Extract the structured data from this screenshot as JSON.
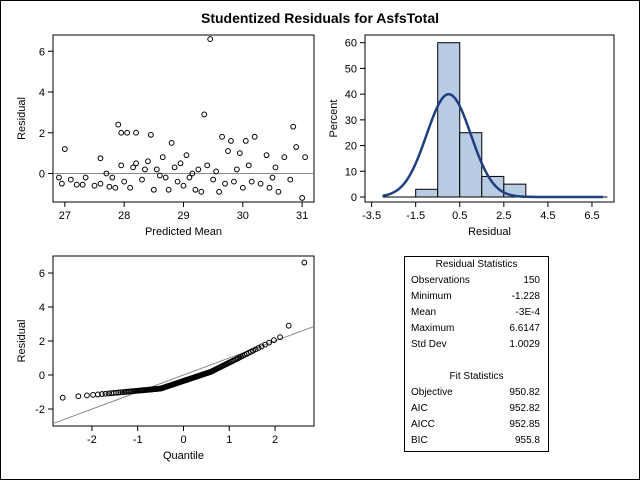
{
  "title": "Studentized Residuals for AsfsTotal",
  "chart_data": [
    {
      "type": "scatter",
      "name": "residual-vs-predicted",
      "xlabel": "Predicted Mean",
      "ylabel": "Residual",
      "xlim": [
        26.8,
        31.2
      ],
      "ylim": [
        -1.4,
        6.8
      ],
      "xticks": [
        27,
        28,
        29,
        30,
        31
      ],
      "yticks": [
        0,
        2,
        4,
        6
      ],
      "reference_line_y": 0,
      "points": [
        [
          26.9,
          -0.2
        ],
        [
          26.95,
          -0.5
        ],
        [
          27.0,
          1.2
        ],
        [
          27.1,
          -0.3
        ],
        [
          27.2,
          -0.55
        ],
        [
          27.3,
          -0.55
        ],
        [
          27.35,
          -0.2
        ],
        [
          27.5,
          -0.6
        ],
        [
          27.6,
          0.75
        ],
        [
          27.6,
          -0.5
        ],
        [
          27.7,
          0.0
        ],
        [
          27.75,
          -0.65
        ],
        [
          27.8,
          -0.2
        ],
        [
          27.85,
          -0.7
        ],
        [
          27.9,
          2.4
        ],
        [
          27.95,
          2.0
        ],
        [
          27.95,
          0.4
        ],
        [
          28.0,
          -0.4
        ],
        [
          28.05,
          2.0
        ],
        [
          28.1,
          -0.7
        ],
        [
          28.15,
          0.3
        ],
        [
          28.2,
          2.0
        ],
        [
          28.2,
          0.5
        ],
        [
          28.3,
          -0.3
        ],
        [
          28.35,
          0.2
        ],
        [
          28.4,
          0.6
        ],
        [
          28.45,
          1.9
        ],
        [
          28.5,
          -0.8
        ],
        [
          28.55,
          0.2
        ],
        [
          28.6,
          -0.1
        ],
        [
          28.65,
          0.8
        ],
        [
          28.7,
          -0.2
        ],
        [
          28.75,
          -0.8
        ],
        [
          28.8,
          1.5
        ],
        [
          28.85,
          0.3
        ],
        [
          28.9,
          -0.4
        ],
        [
          28.95,
          0.5
        ],
        [
          29.0,
          -0.6
        ],
        [
          29.05,
          0.9
        ],
        [
          29.1,
          -0.2
        ],
        [
          29.15,
          0.0
        ],
        [
          29.2,
          -0.8
        ],
        [
          29.25,
          0.2
        ],
        [
          29.3,
          -0.9
        ],
        [
          29.35,
          2.9
        ],
        [
          29.4,
          0.4
        ],
        [
          29.45,
          6.6
        ],
        [
          29.5,
          -0.3
        ],
        [
          29.55,
          0.1
        ],
        [
          29.6,
          -0.9
        ],
        [
          29.65,
          1.8
        ],
        [
          29.7,
          -0.5
        ],
        [
          29.75,
          1.1
        ],
        [
          29.8,
          1.6
        ],
        [
          29.85,
          -0.4
        ],
        [
          29.9,
          0.2
        ],
        [
          29.95,
          1.0
        ],
        [
          30.0,
          -0.7
        ],
        [
          30.05,
          1.6
        ],
        [
          30.1,
          0.4
        ],
        [
          30.15,
          -0.4
        ],
        [
          30.2,
          1.8
        ],
        [
          30.3,
          -0.5
        ],
        [
          30.4,
          0.9
        ],
        [
          30.45,
          -0.7
        ],
        [
          30.5,
          -0.2
        ],
        [
          30.55,
          0.3
        ],
        [
          30.6,
          -0.9
        ],
        [
          30.7,
          0.8
        ],
        [
          30.8,
          -0.3
        ],
        [
          30.85,
          2.3
        ],
        [
          30.9,
          1.3
        ],
        [
          31.0,
          -1.2
        ],
        [
          31.05,
          0.8
        ]
      ]
    },
    {
      "type": "bar",
      "name": "residual-histogram",
      "xlabel": "Residual",
      "ylabel": "Percent",
      "xlim": [
        -3.8,
        7.5
      ],
      "ylim": [
        0,
        63
      ],
      "xticks": [
        "-3.5",
        "-1.5",
        "0.5",
        "2.5",
        "4.5",
        "6.5"
      ],
      "yticks": [
        0,
        10,
        20,
        30,
        40,
        50,
        60
      ],
      "bin_edges": [
        -1.5,
        -0.5,
        0.5,
        1.5,
        2.5,
        3.5
      ],
      "values": [
        3,
        60,
        25,
        8,
        5
      ],
      "bar_color": "#b8cce4",
      "curve_color": "#1f3f7f",
      "normal_curve": {
        "mean": 0.0,
        "sd": 1.0029,
        "xrange": [
          -3.0,
          7.0
        ]
      }
    },
    {
      "type": "scatter",
      "name": "qq-plot",
      "xlabel": "Quantile",
      "ylabel": "Residual",
      "xlim": [
        -2.85,
        2.85
      ],
      "ylim": [
        -3.0,
        7.0
      ],
      "xticks": [
        -2,
        -1,
        0,
        1,
        2
      ],
      "yticks": [
        -2,
        0,
        2,
        4,
        6
      ],
      "reference_line": {
        "intercept": 0.0,
        "slope": 1.0029
      },
      "n": 150,
      "max_residual": 6.6147
    }
  ],
  "stats": {
    "residual_title": "Residual Statistics",
    "residual_rows": [
      {
        "label": "Observations",
        "value": "150"
      },
      {
        "label": "Minimum",
        "value": "-1.228"
      },
      {
        "label": "Mean",
        "value": "-3E-4"
      },
      {
        "label": "Maximum",
        "value": "6.6147"
      },
      {
        "label": "Std Dev",
        "value": "1.0029"
      }
    ],
    "fit_title": "Fit Statistics",
    "fit_rows": [
      {
        "label": "Objective",
        "value": "950.82"
      },
      {
        "label": "AIC",
        "value": "952.82"
      },
      {
        "label": "AICC",
        "value": "952.85"
      },
      {
        "label": "BIC",
        "value": "955.8"
      }
    ]
  }
}
